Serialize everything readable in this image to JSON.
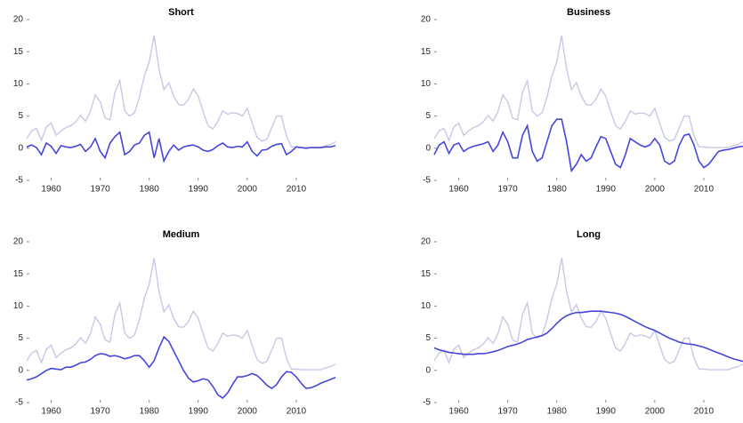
{
  "chart_data": [
    {
      "type": "line",
      "title": "Short",
      "x": [
        1955,
        1956,
        1957,
        1958,
        1959,
        1960,
        1961,
        1962,
        1963,
        1964,
        1965,
        1966,
        1967,
        1968,
        1969,
        1970,
        1971,
        1972,
        1973,
        1974,
        1975,
        1976,
        1977,
        1978,
        1979,
        1980,
        1981,
        1982,
        1983,
        1984,
        1985,
        1986,
        1987,
        1988,
        1989,
        1990,
        1991,
        1992,
        1993,
        1994,
        1995,
        1996,
        1997,
        1998,
        1999,
        2000,
        2001,
        2002,
        2003,
        2004,
        2005,
        2006,
        2007,
        2008,
        2009,
        2010,
        2011,
        2012,
        2013,
        2014,
        2015,
        2016,
        2017,
        2018
      ],
      "series": [
        {
          "color": "#c8c8e6",
          "values": [
            1.5,
            2.7,
            3.1,
            1.2,
            3.3,
            3.9,
            2.0,
            2.7,
            3.2,
            3.5,
            4.1,
            5.1,
            4.2,
            5.7,
            8.3,
            7.2,
            4.7,
            4.4,
            8.7,
            10.5,
            5.8,
            5.0,
            5.5,
            7.9,
            11.2,
            13.4,
            17.5,
            12.3,
            9.1,
            10.2,
            8.1,
            6.8,
            6.7,
            7.6,
            9.2,
            8.1,
            5.7,
            3.5,
            3.0,
            4.2,
            5.8,
            5.3,
            5.5,
            5.4,
            5.0,
            6.2,
            3.9,
            1.7,
            1.1,
            1.4,
            3.2,
            5.0,
            5.0,
            1.9,
            0.2,
            0.2,
            0.1,
            0.1,
            0.1,
            0.1,
            0.1,
            0.4,
            0.6,
            1.0
          ]
        },
        {
          "color": "#4646dc",
          "values": [
            0.2,
            0.5,
            0.1,
            -1.0,
            0.8,
            0.3,
            -0.8,
            0.4,
            0.2,
            0.1,
            0.3,
            0.6,
            -0.5,
            0.2,
            1.5,
            -0.5,
            -1.5,
            0.8,
            1.8,
            2.5,
            -1.0,
            -0.5,
            0.5,
            0.8,
            2.0,
            2.5,
            -1.5,
            1.5,
            -2.0,
            -0.5,
            0.5,
            -0.3,
            0.2,
            0.4,
            0.5,
            0.2,
            -0.3,
            -0.5,
            -0.2,
            0.4,
            0.8,
            0.2,
            0.1,
            0.3,
            0.2,
            1.0,
            -0.5,
            -1.2,
            -0.3,
            -0.2,
            0.3,
            0.6,
            0.7,
            -1.0,
            -0.5,
            0.2,
            0.1,
            0.0,
            0.1,
            0.1,
            0.1,
            0.2,
            0.2,
            0.4
          ]
        }
      ],
      "xlim": [
        1955,
        2018
      ],
      "xticks": [
        1960,
        1970,
        1980,
        1990,
        2000,
        2010
      ],
      "ylim": [
        -5,
        20
      ],
      "yticks": [
        -5,
        0,
        5,
        10,
        15,
        20
      ]
    },
    {
      "type": "line",
      "title": "Business",
      "x": [
        1955,
        1956,
        1957,
        1958,
        1959,
        1960,
        1961,
        1962,
        1963,
        1964,
        1965,
        1966,
        1967,
        1968,
        1969,
        1970,
        1971,
        1972,
        1973,
        1974,
        1975,
        1976,
        1977,
        1978,
        1979,
        1980,
        1981,
        1982,
        1983,
        1984,
        1985,
        1986,
        1987,
        1988,
        1989,
        1990,
        1991,
        1992,
        1993,
        1994,
        1995,
        1996,
        1997,
        1998,
        1999,
        2000,
        2001,
        2002,
        2003,
        2004,
        2005,
        2006,
        2007,
        2008,
        2009,
        2010,
        2011,
        2012,
        2013,
        2014,
        2015,
        2016,
        2017,
        2018
      ],
      "series": [
        {
          "color": "#c8c8e6",
          "values": [
            1.5,
            2.7,
            3.1,
            1.2,
            3.3,
            3.9,
            2.0,
            2.7,
            3.2,
            3.5,
            4.1,
            5.1,
            4.2,
            5.7,
            8.3,
            7.2,
            4.7,
            4.4,
            8.7,
            10.5,
            5.8,
            5.0,
            5.5,
            7.9,
            11.2,
            13.4,
            17.5,
            12.3,
            9.1,
            10.2,
            8.1,
            6.8,
            6.7,
            7.6,
            9.2,
            8.1,
            5.7,
            3.5,
            3.0,
            4.2,
            5.8,
            5.3,
            5.5,
            5.4,
            5.0,
            6.2,
            3.9,
            1.7,
            1.1,
            1.4,
            3.2,
            5.0,
            5.0,
            1.9,
            0.2,
            0.2,
            0.1,
            0.1,
            0.1,
            0.1,
            0.1,
            0.4,
            0.6,
            1.0
          ]
        },
        {
          "color": "#4646dc",
          "values": [
            -1.0,
            0.5,
            1.0,
            -0.8,
            0.5,
            0.8,
            -0.5,
            0,
            0.3,
            0.5,
            0.7,
            1.0,
            -0.5,
            0.5,
            2.5,
            1.0,
            -1.5,
            -1.5,
            2.0,
            3.5,
            -0.5,
            -2.0,
            -1.5,
            1.0,
            3.5,
            4.5,
            4.5,
            1.0,
            -3.5,
            -2.5,
            -1.0,
            -2.0,
            -1.5,
            0.2,
            1.8,
            1.5,
            -0.5,
            -2.5,
            -3.0,
            -1.0,
            1.5,
            1.0,
            0.5,
            0.2,
            0.5,
            1.5,
            0.5,
            -2.0,
            -2.5,
            -2.0,
            0.5,
            2.0,
            2.2,
            0.5,
            -2.0,
            -3.0,
            -2.5,
            -1.5,
            -0.5,
            -0.3,
            -0.2,
            0,
            0.2,
            0.3
          ]
        }
      ],
      "xlim": [
        1955,
        2018
      ],
      "xticks": [
        1960,
        1970,
        1980,
        1990,
        2000,
        2010
      ],
      "ylim": [
        -5,
        20
      ],
      "yticks": [
        -5,
        0,
        5,
        10,
        15,
        20
      ]
    },
    {
      "type": "line",
      "title": "Medium",
      "x": [
        1955,
        1956,
        1957,
        1958,
        1959,
        1960,
        1961,
        1962,
        1963,
        1964,
        1965,
        1966,
        1967,
        1968,
        1969,
        1970,
        1971,
        1972,
        1973,
        1974,
        1975,
        1976,
        1977,
        1978,
        1979,
        1980,
        1981,
        1982,
        1983,
        1984,
        1985,
        1986,
        1987,
        1988,
        1989,
        1990,
        1991,
        1992,
        1993,
        1994,
        1995,
        1996,
        1997,
        1998,
        1999,
        2000,
        2001,
        2002,
        2003,
        2004,
        2005,
        2006,
        2007,
        2008,
        2009,
        2010,
        2011,
        2012,
        2013,
        2014,
        2015,
        2016,
        2017,
        2018
      ],
      "series": [
        {
          "color": "#c8c8e6",
          "values": [
            1.5,
            2.7,
            3.1,
            1.2,
            3.3,
            3.9,
            2.0,
            2.7,
            3.2,
            3.5,
            4.1,
            5.1,
            4.2,
            5.7,
            8.3,
            7.2,
            4.7,
            4.4,
            8.7,
            10.5,
            5.8,
            5.0,
            5.5,
            7.9,
            11.2,
            13.4,
            17.5,
            12.3,
            9.1,
            10.2,
            8.1,
            6.8,
            6.7,
            7.6,
            9.2,
            8.1,
            5.7,
            3.5,
            3.0,
            4.2,
            5.8,
            5.3,
            5.5,
            5.4,
            5.0,
            6.2,
            3.9,
            1.7,
            1.1,
            1.4,
            3.2,
            5.0,
            5.0,
            1.9,
            0.2,
            0.2,
            0.1,
            0.1,
            0.1,
            0.1,
            0.1,
            0.4,
            0.6,
            1.0
          ]
        },
        {
          "color": "#4646dc",
          "values": [
            -1.5,
            -1.3,
            -1.0,
            -0.5,
            0,
            0.3,
            0.2,
            0.1,
            0.5,
            0.5,
            0.8,
            1.2,
            1.3,
            1.7,
            2.3,
            2.6,
            2.5,
            2.2,
            2.3,
            2.1,
            1.8,
            2.0,
            2.3,
            2.3,
            1.5,
            0.5,
            1.5,
            3.5,
            5.2,
            4.5,
            3.0,
            1.5,
            0,
            -1.2,
            -1.8,
            -1.6,
            -1.3,
            -1.5,
            -2.5,
            -3.8,
            -4.3,
            -3.5,
            -2.2,
            -1.0,
            -1.0,
            -0.8,
            -0.5,
            -0.8,
            -1.5,
            -2.3,
            -2.8,
            -2.2,
            -1.0,
            -0.2,
            -0.3,
            -1.0,
            -2.0,
            -2.8,
            -2.7,
            -2.4,
            -2.0,
            -1.7,
            -1.4,
            -1.1
          ]
        }
      ],
      "xlim": [
        1955,
        2018
      ],
      "xticks": [
        1960,
        1970,
        1980,
        1990,
        2000,
        2010
      ],
      "ylim": [
        -5,
        20
      ],
      "yticks": [
        -5,
        0,
        5,
        10,
        15,
        20
      ]
    },
    {
      "type": "line",
      "title": "Long",
      "x": [
        1955,
        1956,
        1957,
        1958,
        1959,
        1960,
        1961,
        1962,
        1963,
        1964,
        1965,
        1966,
        1967,
        1968,
        1969,
        1970,
        1971,
        1972,
        1973,
        1974,
        1975,
        1976,
        1977,
        1978,
        1979,
        1980,
        1981,
        1982,
        1983,
        1984,
        1985,
        1986,
        1987,
        1988,
        1989,
        1990,
        1991,
        1992,
        1993,
        1994,
        1995,
        1996,
        1997,
        1998,
        1999,
        2000,
        2001,
        2002,
        2003,
        2004,
        2005,
        2006,
        2007,
        2008,
        2009,
        2010,
        2011,
        2012,
        2013,
        2014,
        2015,
        2016,
        2017,
        2018
      ],
      "series": [
        {
          "color": "#c8c8e6",
          "values": [
            1.5,
            2.7,
            3.1,
            1.2,
            3.3,
            3.9,
            2.0,
            2.7,
            3.2,
            3.5,
            4.1,
            5.1,
            4.2,
            5.7,
            8.3,
            7.2,
            4.7,
            4.4,
            8.7,
            10.5,
            5.8,
            5.0,
            5.5,
            7.9,
            11.2,
            13.4,
            17.5,
            12.3,
            9.1,
            10.2,
            8.1,
            6.8,
            6.7,
            7.6,
            9.2,
            8.1,
            5.7,
            3.5,
            3.0,
            4.2,
            5.8,
            5.3,
            5.5,
            5.4,
            5.0,
            6.2,
            3.9,
            1.7,
            1.1,
            1.4,
            3.2,
            5.0,
            5.0,
            1.9,
            0.2,
            0.2,
            0.1,
            0.1,
            0.1,
            0.1,
            0.1,
            0.4,
            0.6,
            1.0
          ]
        },
        {
          "color": "#4646dc",
          "values": [
            3.5,
            3.2,
            3.0,
            2.8,
            2.7,
            2.6,
            2.5,
            2.5,
            2.5,
            2.6,
            2.6,
            2.7,
            2.9,
            3.1,
            3.4,
            3.7,
            3.9,
            4.1,
            4.4,
            4.8,
            5.0,
            5.2,
            5.4,
            5.8,
            6.5,
            7.3,
            8.0,
            8.5,
            8.8,
            9.0,
            9.0,
            9.1,
            9.2,
            9.2,
            9.2,
            9.1,
            9.0,
            8.9,
            8.7,
            8.4,
            8.0,
            7.6,
            7.2,
            6.8,
            6.5,
            6.2,
            5.8,
            5.4,
            5.0,
            4.7,
            4.4,
            4.2,
            4.1,
            4.0,
            3.8,
            3.6,
            3.3,
            3.0,
            2.7,
            2.4,
            2.1,
            1.8,
            1.6,
            1.4
          ]
        }
      ],
      "xlim": [
        1955,
        2018
      ],
      "xticks": [
        1960,
        1970,
        1980,
        1990,
        2000,
        2010
      ],
      "ylim": [
        -5,
        20
      ],
      "yticks": [
        -5,
        0,
        5,
        10,
        15,
        20
      ]
    }
  ]
}
